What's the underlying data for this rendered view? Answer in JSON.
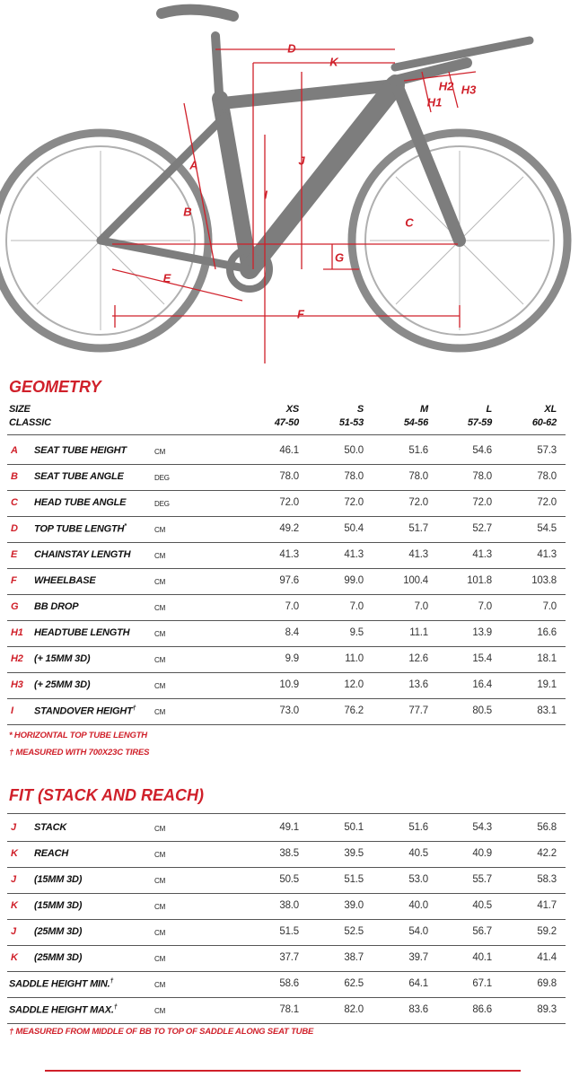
{
  "diagram": {
    "labels": [
      "D",
      "K",
      "H2",
      "H3",
      "H1",
      "A",
      "J",
      "I",
      "B",
      "C",
      "G",
      "E",
      "F"
    ]
  },
  "geometry": {
    "title": "GEOMETRY",
    "size": "SIZE",
    "classic": "CLASSIC",
    "sizes": [
      {
        "name": "XS",
        "range": "47-50"
      },
      {
        "name": "S",
        "range": "51-53"
      },
      {
        "name": "M",
        "range": "54-56"
      },
      {
        "name": "L",
        "range": "57-59"
      },
      {
        "name": "XL",
        "range": "60-62"
      }
    ],
    "rows": [
      {
        "letter": "A",
        "name": "SEAT TUBE HEIGHT",
        "unit": "CM",
        "values": [
          "46.1",
          "50.0",
          "51.6",
          "54.6",
          "57.3"
        ]
      },
      {
        "letter": "B",
        "name": "SEAT TUBE ANGLE",
        "unit": "DEG",
        "values": [
          "78.0",
          "78.0",
          "78.0",
          "78.0",
          "78.0"
        ]
      },
      {
        "letter": "C",
        "name": "HEAD TUBE ANGLE",
        "unit": "DEG",
        "values": [
          "72.0",
          "72.0",
          "72.0",
          "72.0",
          "72.0"
        ]
      },
      {
        "letter": "D",
        "name": "TOP TUBE LENGTH",
        "mark": "*",
        "unit": "CM",
        "values": [
          "49.2",
          "50.4",
          "51.7",
          "52.7",
          "54.5"
        ]
      },
      {
        "letter": "E",
        "name": "CHAINSTAY LENGTH",
        "unit": "CM",
        "values": [
          "41.3",
          "41.3",
          "41.3",
          "41.3",
          "41.3"
        ]
      },
      {
        "letter": "F",
        "name": "WHEELBASE",
        "unit": "CM",
        "values": [
          "97.6",
          "99.0",
          "100.4",
          "101.8",
          "103.8"
        ]
      },
      {
        "letter": "G",
        "name": "BB DROP",
        "unit": "CM",
        "values": [
          "7.0",
          "7.0",
          "7.0",
          "7.0",
          "7.0"
        ]
      },
      {
        "letter": "H1",
        "name": "HEADTUBE LENGTH",
        "unit": "CM",
        "values": [
          "8.4",
          "9.5",
          "11.1",
          "13.9",
          "16.6"
        ]
      },
      {
        "letter": "H2",
        "name": "(+ 15MM 3D)",
        "unit": "CM",
        "values": [
          "9.9",
          "11.0",
          "12.6",
          "15.4",
          "18.1"
        ]
      },
      {
        "letter": "H3",
        "name": "(+ 25MM 3D)",
        "unit": "CM",
        "values": [
          "10.9",
          "12.0",
          "13.6",
          "16.4",
          "19.1"
        ]
      },
      {
        "letter": "I",
        "name": "STANDOVER HEIGHT",
        "mark": "†",
        "unit": "CM",
        "values": [
          "73.0",
          "76.2",
          "77.7",
          "80.5",
          "83.1"
        ]
      }
    ],
    "notes": [
      "* HORIZONTAL TOP TUBE LENGTH",
      "† MEASURED WITH 700X23C TIRES"
    ]
  },
  "fit": {
    "title": "FIT (STACK AND REACH)",
    "rows": [
      {
        "letter": "J",
        "name": "STACK",
        "unit": "CM",
        "values": [
          "49.1",
          "50.1",
          "51.6",
          "54.3",
          "56.8"
        ]
      },
      {
        "letter": "K",
        "name": "REACH",
        "unit": "CM",
        "values": [
          "38.5",
          "39.5",
          "40.5",
          "40.9",
          "42.2"
        ]
      },
      {
        "letter": "J",
        "name": "(15MM 3D)",
        "unit": "CM",
        "values": [
          "50.5",
          "51.5",
          "53.0",
          "55.7",
          "58.3"
        ]
      },
      {
        "letter": "K",
        "name": "(15MM 3D)",
        "unit": "CM",
        "values": [
          "38.0",
          "39.0",
          "40.0",
          "40.5",
          "41.7"
        ]
      },
      {
        "letter": "J",
        "name": "(25MM 3D)",
        "unit": "CM",
        "values": [
          "51.5",
          "52.5",
          "54.0",
          "56.7",
          "59.2"
        ]
      },
      {
        "letter": "K",
        "name": "(25MM 3D)",
        "unit": "CM",
        "values": [
          "37.7",
          "38.7",
          "39.7",
          "40.1",
          "41.4"
        ]
      },
      {
        "name": "SADDLE HEIGHT MIN.",
        "mark": "†",
        "unit": "CM",
        "values": [
          "58.6",
          "62.5",
          "64.1",
          "67.1",
          "69.8"
        ]
      },
      {
        "name": "SADDLE HEIGHT MAX.",
        "mark": "†",
        "unit": "CM",
        "values": [
          "78.1",
          "82.0",
          "83.6",
          "86.6",
          "89.3"
        ]
      }
    ],
    "notes": [
      "† MEASURED FROM MIDDLE OF BB TO TOP OF SADDLE ALONG SEAT TUBE"
    ]
  }
}
